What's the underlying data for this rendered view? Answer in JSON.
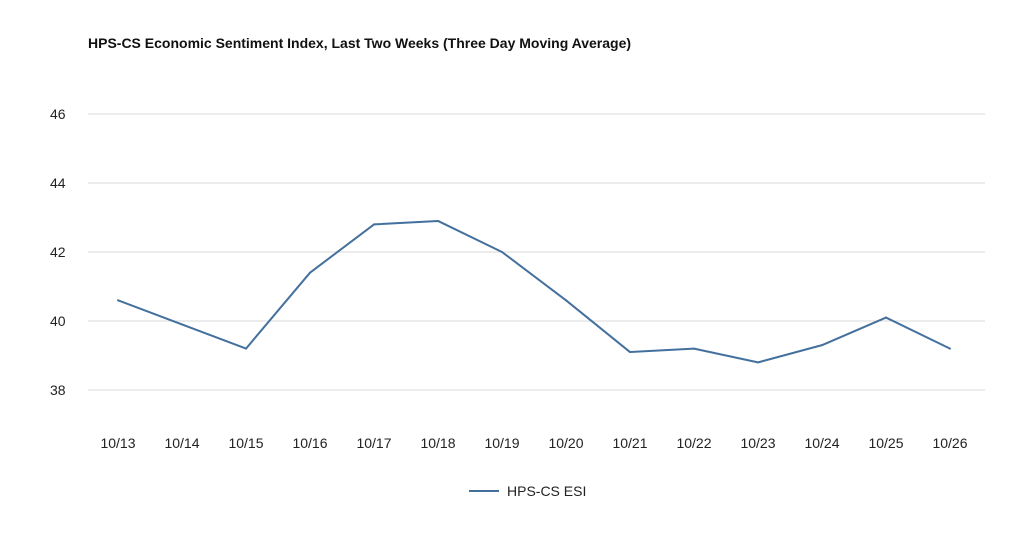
{
  "chart_data": {
    "type": "line",
    "title": "HPS-CS Economic Sentiment Index, Last Two Weeks (Three Day Moving Average)",
    "xlabel": "",
    "ylabel": "",
    "categories": [
      "10/13",
      "10/14",
      "10/15",
      "10/16",
      "10/17",
      "10/18",
      "10/19",
      "10/20",
      "10/21",
      "10/22",
      "10/23",
      "10/24",
      "10/25",
      "10/26"
    ],
    "series": [
      {
        "name": "HPS-CS ESI",
        "color": "#44709d",
        "values": [
          40.6,
          39.9,
          39.2,
          41.4,
          42.8,
          42.9,
          42.0,
          40.6,
          39.1,
          39.2,
          38.8,
          39.3,
          40.1,
          39.2
        ]
      }
    ],
    "ylim": [
      37,
      47
    ],
    "yticks": [
      38,
      40,
      42,
      44,
      46
    ],
    "grid": true,
    "legend_position": "bottom"
  }
}
